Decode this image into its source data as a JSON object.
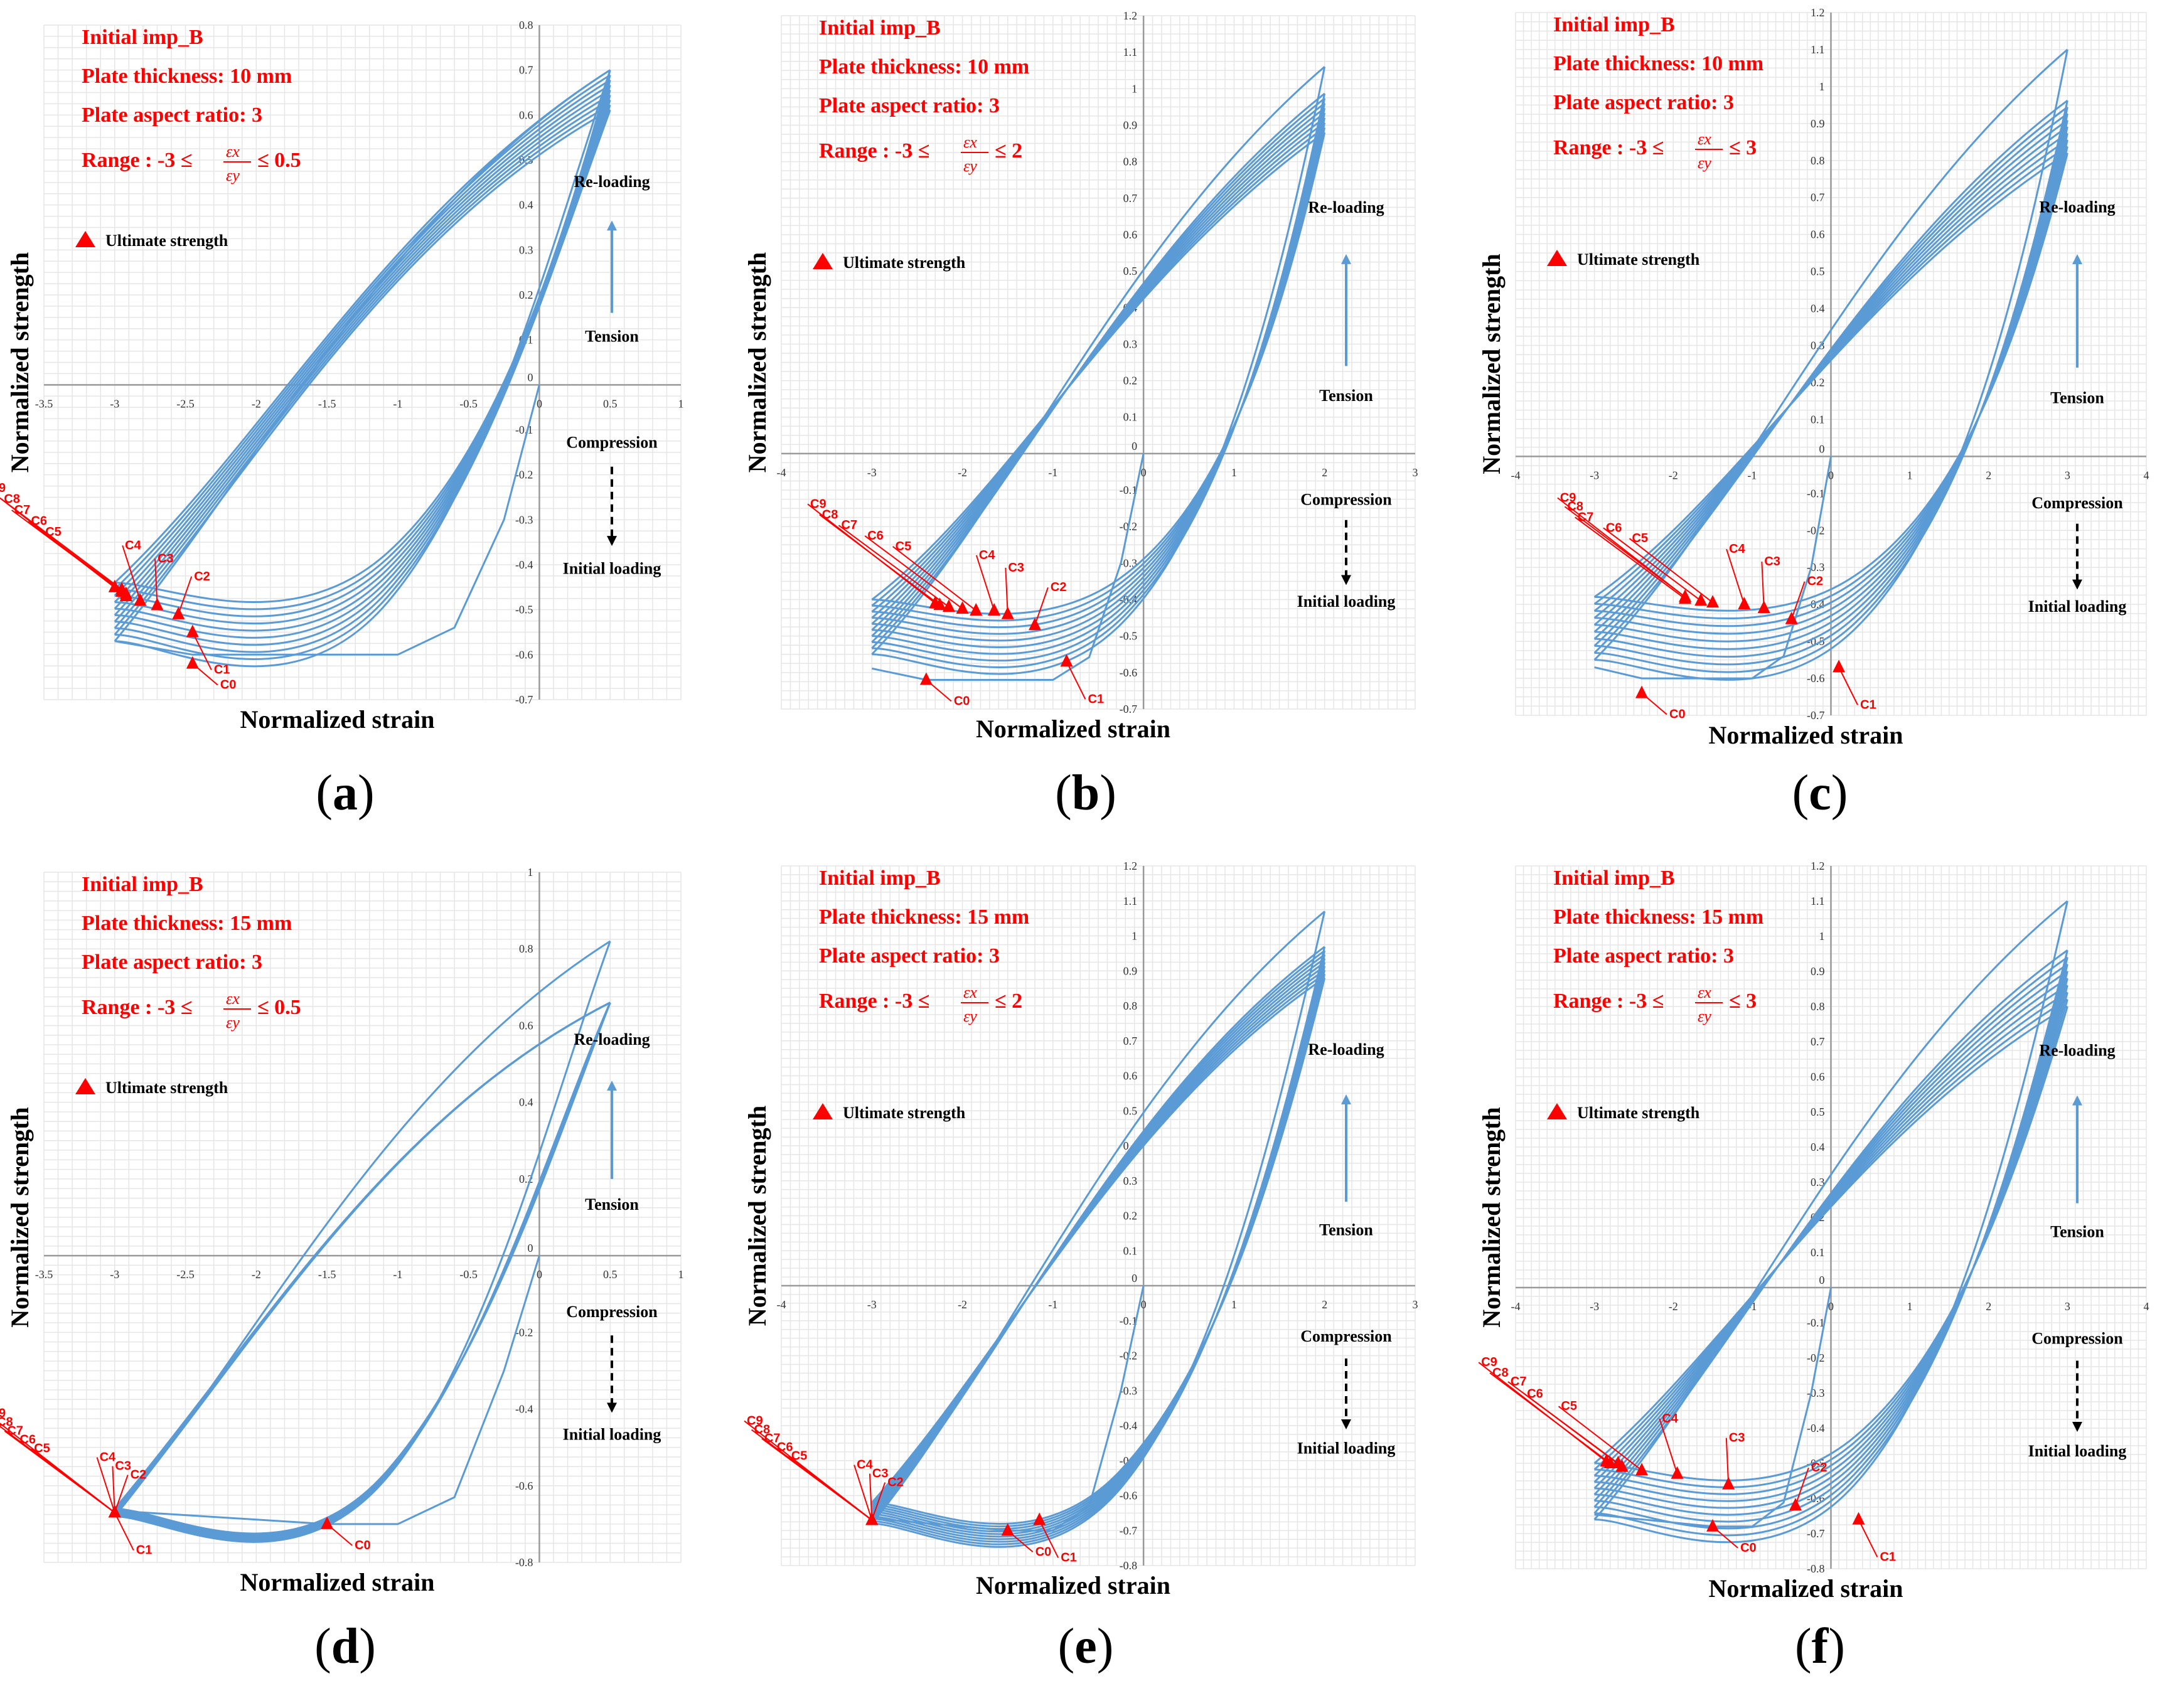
{
  "chart_data": [
    {
      "panel": "(a)",
      "type": "line",
      "title": [
        "Initial imp_B",
        "Plate thickness: 10 mm",
        "Plate aspect ratio: 3",
        "Range : -3 ≤",
        "≤ 0.5"
      ],
      "xlabel": "Normalized strain",
      "ylabel": "Normalized strength",
      "xlim": [
        -3.5,
        1
      ],
      "ylim": [
        -0.7,
        0.8
      ],
      "xticks": [
        -3.5,
        -3,
        -2.5,
        -2,
        -1.5,
        -1,
        -0.5,
        0,
        0.5,
        1
      ],
      "yticks": [
        -0.7,
        -0.6,
        -0.5,
        -0.4,
        -0.3,
        -0.2,
        -0.1,
        0,
        0.1,
        0.2,
        0.3,
        0.4,
        0.5,
        0.6,
        0.7,
        0.8
      ],
      "xmin": -3,
      "xmax": 0.5,
      "tip": 0.7,
      "init_peak": -0.6,
      "init_peak_x": -2.45,
      "first_unload_y": 0.5,
      "cycles": 10,
      "lower_start": -0.57,
      "lower_end": -0.44,
      "upper_start": 0.6,
      "upper_end": 0.7,
      "legend": "Ultimate strength",
      "series": [
        {
          "name": "C0",
          "x": -2.45,
          "y": -0.62
        },
        {
          "name": "C1",
          "x": -2.45,
          "y": -0.55
        },
        {
          "name": "C2",
          "x": -2.55,
          "y": -0.51
        },
        {
          "name": "C3",
          "x": -2.7,
          "y": -0.49
        },
        {
          "name": "C4",
          "x": -2.82,
          "y": -0.48
        },
        {
          "name": "C5",
          "x": -2.92,
          "y": -0.47
        },
        {
          "name": "C6",
          "x": -2.92,
          "y": -0.465
        },
        {
          "name": "C7",
          "x": -2.95,
          "y": -0.46
        },
        {
          "name": "C8",
          "x": -2.95,
          "y": -0.455
        },
        {
          "name": "C9",
          "x": -3.0,
          "y": -0.45
        }
      ],
      "annotations": {
        "reload": "Re-loading",
        "tension": "Tension",
        "compression": "Compression",
        "initial": "Initial loading"
      }
    },
    {
      "panel": "(b)",
      "type": "line",
      "title": [
        "Initial imp_B",
        "Plate thickness: 10 mm",
        "Plate aspect ratio: 3",
        "Range : -3 ≤",
        "≤ 2"
      ],
      "xlabel": "Normalized strain",
      "ylabel": "Normalized strength",
      "xlim": [
        -4,
        3
      ],
      "ylim": [
        -0.7,
        1.2
      ],
      "xticks": [
        -4,
        -3,
        -2,
        -1,
        0,
        1,
        2,
        3
      ],
      "yticks": [
        -0.7,
        -0.6,
        -0.5,
        -0.4,
        -0.3,
        -0.2,
        -0.1,
        0,
        0.1,
        0.2,
        0.3,
        0.4,
        0.5,
        0.6,
        0.7,
        0.8,
        0.9,
        1,
        1.1,
        1.2
      ],
      "xmin": -3,
      "xmax": 2,
      "tip": 1.06,
      "init_peak": -0.62,
      "init_peak_x": -2.4,
      "first_unload_y": 0.55,
      "cycles": 10,
      "lower_start": -0.55,
      "lower_end": -0.4,
      "upper_start": 1.0,
      "upper_end": 0.88,
      "legend": "Ultimate strength",
      "series": [
        {
          "name": "C0",
          "x": -2.4,
          "y": -0.62
        },
        {
          "name": "C1",
          "x": -0.85,
          "y": -0.57
        },
        {
          "name": "C2",
          "x": -1.2,
          "y": -0.47
        },
        {
          "name": "C3",
          "x": -1.5,
          "y": -0.44
        },
        {
          "name": "C4",
          "x": -1.65,
          "y": -0.43
        },
        {
          "name": "C5",
          "x": -1.85,
          "y": -0.43
        },
        {
          "name": "C6",
          "x": -2.0,
          "y": -0.425
        },
        {
          "name": "C7",
          "x": -2.15,
          "y": -0.42
        },
        {
          "name": "C8",
          "x": -2.25,
          "y": -0.415
        },
        {
          "name": "C9",
          "x": -2.3,
          "y": -0.41
        }
      ],
      "annotations": {
        "reload": "Re-loading",
        "tension": "Tension",
        "compression": "Compression",
        "initial": "Initial loading"
      }
    },
    {
      "panel": "(c)",
      "type": "line",
      "title": [
        "Initial imp_B",
        "Plate thickness: 10 mm",
        "Plate aspect ratio: 3",
        "Range : -3 ≤",
        "≤ 3"
      ],
      "xlabel": "Normalized strain",
      "ylabel": "Normalized strength",
      "xlim": [
        -4,
        4
      ],
      "ylim": [
        -0.7,
        1.2
      ],
      "xticks": [
        -4,
        -3,
        -2,
        -1,
        0,
        1,
        2,
        3,
        4
      ],
      "yticks": [
        -0.7,
        -0.6,
        -0.5,
        -0.4,
        -0.3,
        -0.2,
        -0.1,
        0,
        0.1,
        0.2,
        0.3,
        0.4,
        0.5,
        0.6,
        0.7,
        0.8,
        0.9,
        1,
        1.1,
        1.2
      ],
      "xmin": -3,
      "xmax": 3,
      "tip": 1.1,
      "init_peak": -0.6,
      "init_peak_x": -2.4,
      "first_unload_y": 0.52,
      "cycles": 10,
      "lower_start": -0.55,
      "lower_end": -0.38,
      "upper_start": 0.98,
      "upper_end": 0.82,
      "legend": "Ultimate strength",
      "series": [
        {
          "name": "C0",
          "x": -2.4,
          "y": -0.64
        },
        {
          "name": "C1",
          "x": 0.1,
          "y": -0.57
        },
        {
          "name": "C2",
          "x": -0.5,
          "y": -0.44
        },
        {
          "name": "C3",
          "x": -0.85,
          "y": -0.41
        },
        {
          "name": "C4",
          "x": -1.1,
          "y": -0.4
        },
        {
          "name": "C5",
          "x": -1.5,
          "y": -0.395
        },
        {
          "name": "C6",
          "x": -1.65,
          "y": -0.39
        },
        {
          "name": "C7",
          "x": -1.85,
          "y": -0.385
        },
        {
          "name": "C8",
          "x": -1.85,
          "y": -0.38
        },
        {
          "name": "C9",
          "x": -1.85,
          "y": -0.38
        }
      ],
      "annotations": {
        "reload": "Re-loading",
        "tension": "Tension",
        "compression": "Compression",
        "initial": "Initial loading"
      }
    },
    {
      "panel": "(d)",
      "type": "line",
      "title": [
        "Initial imp_B",
        "Plate thickness: 15 mm",
        "Plate aspect ratio: 3",
        "Range : -3 ≤",
        "≤ 0.5"
      ],
      "xlabel": "Normalized strain",
      "ylabel": "Normalized strength",
      "xlim": [
        -3.5,
        1
      ],
      "ylim": [
        -0.8,
        1
      ],
      "xticks": [
        -3.5,
        -3,
        -2.5,
        -2,
        -1.5,
        -1,
        -0.5,
        0,
        0.5,
        1
      ],
      "yticks": [
        -0.8,
        -0.6,
        -0.4,
        -0.2,
        0,
        0.2,
        0.4,
        0.6,
        0.8,
        1
      ],
      "xmin": -3,
      "xmax": 0.5,
      "tip": 0.82,
      "init_peak": -0.7,
      "init_peak_x": -1.5,
      "first_unload_y": 0.65,
      "cycles": 10,
      "lower_start": -0.68,
      "lower_end": -0.66,
      "upper_start": 0.66,
      "upper_end": 0.66,
      "legend": "Ultimate strength",
      "series": [
        {
          "name": "C0",
          "x": -1.5,
          "y": -0.7
        },
        {
          "name": "C1",
          "x": -3.0,
          "y": -0.67
        },
        {
          "name": "C2",
          "x": -3.0,
          "y": -0.67
        },
        {
          "name": "C3",
          "x": -3.0,
          "y": -0.67
        },
        {
          "name": "C4",
          "x": -3.0,
          "y": -0.67
        },
        {
          "name": "C5",
          "x": -3.0,
          "y": -0.67
        },
        {
          "name": "C6",
          "x": -3.0,
          "y": -0.67
        },
        {
          "name": "C7",
          "x": -3.0,
          "y": -0.67
        },
        {
          "name": "C8",
          "x": -3.0,
          "y": -0.67
        },
        {
          "name": "C9",
          "x": -3.0,
          "y": -0.67
        }
      ],
      "annotations": {
        "reload": "Re-loading",
        "tension": "Tension",
        "compression": "Compression",
        "initial": "Initial loading"
      }
    },
    {
      "panel": "(e)",
      "type": "line",
      "title": [
        "Initial imp_B",
        "Plate thickness: 15 mm",
        "Plate aspect ratio: 3",
        "Range : -3 ≤",
        "≤ 2"
      ],
      "xlabel": "Normalized strain",
      "ylabel": "Normalized strength",
      "xlim": [
        -4,
        3
      ],
      "ylim": [
        -0.8,
        1.2
      ],
      "xticks": [
        -4,
        -3,
        -2,
        -1,
        0,
        1,
        2,
        3
      ],
      "yticks": [
        -0.8,
        -0.7,
        -0.6,
        -0.5,
        -0.4,
        -0.3,
        -0.2,
        -0.1,
        0,
        0.1,
        0.2,
        0.3,
        0.4,
        0.5,
        0.6,
        0.7,
        0.8,
        0.9,
        1,
        1.1,
        1.2
      ],
      "xmin": -3,
      "xmax": 2,
      "tip": 1.07,
      "init_peak": -0.7,
      "init_peak_x": -1.5,
      "first_unload_y": 0.65,
      "cycles": 10,
      "lower_start": -0.68,
      "lower_end": -0.62,
      "upper_start": 0.98,
      "upper_end": 0.88,
      "legend": "Ultimate strength",
      "series": [
        {
          "name": "C0",
          "x": -1.5,
          "y": -0.7
        },
        {
          "name": "C1",
          "x": -1.15,
          "y": -0.67
        },
        {
          "name": "C2",
          "x": -3.0,
          "y": -0.67
        },
        {
          "name": "C3",
          "x": -3.0,
          "y": -0.67
        },
        {
          "name": "C4",
          "x": -3.0,
          "y": -0.67
        },
        {
          "name": "C5",
          "x": -3.0,
          "y": -0.67
        },
        {
          "name": "C6",
          "x": -3.0,
          "y": -0.67
        },
        {
          "name": "C7",
          "x": -3.0,
          "y": -0.67
        },
        {
          "name": "C8",
          "x": -3.0,
          "y": -0.67
        },
        {
          "name": "C9",
          "x": -3.0,
          "y": -0.67
        }
      ],
      "annotations": {
        "reload": "Re-loading",
        "tension": "Tension",
        "compression": "Compression",
        "initial": "Initial loading"
      }
    },
    {
      "panel": "(f)",
      "type": "line",
      "title": [
        "Initial imp_B",
        "Plate thickness: 15 mm",
        "Plate aspect ratio: 3",
        "Range : -3 ≤",
        "≤ 3"
      ],
      "xlabel": "Normalized strain",
      "ylabel": "Normalized strength",
      "xlim": [
        -4,
        4
      ],
      "ylim": [
        -0.8,
        1.2
      ],
      "xticks": [
        -4,
        -3,
        -2,
        -1,
        0,
        1,
        2,
        3,
        4
      ],
      "yticks": [
        -0.8,
        -0.7,
        -0.6,
        -0.5,
        -0.4,
        -0.3,
        -0.2,
        -0.1,
        0,
        0.1,
        0.2,
        0.3,
        0.4,
        0.5,
        0.6,
        0.7,
        0.8,
        0.9,
        1,
        1.1,
        1.2
      ],
      "xmin": -3,
      "xmax": 3,
      "tip": 1.1,
      "init_peak": -0.68,
      "init_peak_x": -1.5,
      "first_unload_y": 0.65,
      "cycles": 10,
      "lower_start": -0.66,
      "lower_end": -0.5,
      "upper_start": 0.98,
      "upper_end": 0.8,
      "legend": "Ultimate strength",
      "series": [
        {
          "name": "C0",
          "x": -1.5,
          "y": -0.68
        },
        {
          "name": "C1",
          "x": 0.35,
          "y": -0.66
        },
        {
          "name": "C2",
          "x": -0.45,
          "y": -0.62
        },
        {
          "name": "C3",
          "x": -1.3,
          "y": -0.56
        },
        {
          "name": "C4",
          "x": -1.95,
          "y": -0.53
        },
        {
          "name": "C5",
          "x": -2.4,
          "y": -0.52
        },
        {
          "name": "C6",
          "x": -2.65,
          "y": -0.51
        },
        {
          "name": "C7",
          "x": -2.7,
          "y": -0.5
        },
        {
          "name": "C8",
          "x": -2.8,
          "y": -0.5
        },
        {
          "name": "C9",
          "x": -2.85,
          "y": -0.495
        }
      ],
      "annotations": {
        "reload": "Re-loading",
        "tension": "Tension",
        "compression": "Compression",
        "initial": "Initial loading"
      }
    }
  ],
  "colors": {
    "curve": "#5b9bd5",
    "marker": "#ff0000",
    "label": "#ff0000",
    "grid": "#e6e6e6",
    "axis": "#9a9a9a",
    "text": "#000000"
  }
}
